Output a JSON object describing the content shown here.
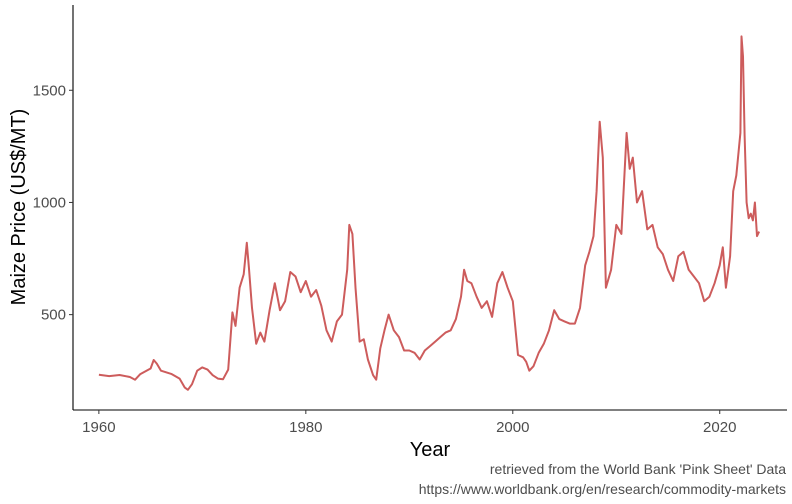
{
  "chart_data": {
    "type": "line",
    "xlabel": "Year",
    "ylabel": "Maize Price (US$/MT)",
    "xlim": [
      1957.5,
      2026.5
    ],
    "ylim": [
      75,
      1880
    ],
    "x_ticks": [
      1960,
      1980,
      2000,
      2020
    ],
    "y_ticks": [
      500,
      1000,
      1500
    ],
    "grid": false,
    "line_color": "#CD5C5C",
    "series": [
      {
        "x": [
          1960.0,
          1961.0,
          1962.0,
          1963.0,
          1963.5,
          1964.0,
          1965.0,
          1965.3,
          1965.6,
          1966.0,
          1967.0,
          1967.8,
          1968.3,
          1968.6,
          1969.0,
          1969.5,
          1970.0,
          1970.5,
          1971.0,
          1971.5,
          1972.0,
          1972.5,
          1972.9,
          1973.2,
          1973.6,
          1974.0,
          1974.3,
          1974.5,
          1974.8,
          1975.2,
          1975.6,
          1976.0,
          1976.5,
          1977.0,
          1977.5,
          1978.0,
          1978.5,
          1979.0,
          1979.5,
          1980.0,
          1980.5,
          1981.0,
          1981.5,
          1982.0,
          1982.5,
          1983.0,
          1983.5,
          1984.0,
          1984.2,
          1984.5,
          1984.8,
          1985.2,
          1985.6,
          1986.0,
          1986.5,
          1986.8,
          1987.2,
          1987.6,
          1988.0,
          1988.5,
          1989.0,
          1989.5,
          1990.0,
          1990.5,
          1991.0,
          1991.5,
          1992.0,
          1992.5,
          1993.0,
          1993.5,
          1994.0,
          1994.5,
          1995.0,
          1995.3,
          1995.6,
          1996.0,
          1996.5,
          1997.0,
          1997.5,
          1998.0,
          1998.5,
          1999.0,
          1999.5,
          2000.0,
          2000.5,
          2001.0,
          2001.3,
          2001.6,
          2002.0,
          2002.5,
          2003.0,
          2003.5,
          2004.0,
          2004.5,
          2005.0,
          2005.5,
          2006.0,
          2006.5,
          2007.0,
          2007.4,
          2007.8,
          2008.1,
          2008.4,
          2008.7,
          2009.0,
          2009.5,
          2010.0,
          2010.5,
          2011.0,
          2011.3,
          2011.6,
          2012.0,
          2012.5,
          2013.0,
          2013.5,
          2014.0,
          2014.5,
          2015.0,
          2015.5,
          2016.0,
          2016.5,
          2017.0,
          2017.5,
          2018.0,
          2018.5,
          2019.0,
          2019.5,
          2020.0,
          2020.3,
          2020.6,
          2021.0,
          2021.3,
          2021.6,
          2022.0,
          2022.1,
          2022.25,
          2022.4,
          2022.6,
          2022.8,
          2023.0,
          2023.2,
          2023.4,
          2023.6,
          2023.8
        ],
        "values": [
          232,
          226,
          231,
          222,
          210,
          235,
          260,
          298,
          282,
          250,
          236,
          215,
          175,
          165,
          190,
          250,
          265,
          255,
          230,
          215,
          212,
          255,
          510,
          450,
          620,
          680,
          820,
          710,
          530,
          370,
          420,
          380,
          520,
          640,
          520,
          560,
          690,
          670,
          600,
          650,
          580,
          610,
          540,
          430,
          380,
          470,
          500,
          700,
          900,
          860,
          620,
          380,
          390,
          300,
          230,
          210,
          350,
          430,
          500,
          430,
          400,
          340,
          340,
          330,
          300,
          340,
          360,
          380,
          400,
          420,
          430,
          480,
          580,
          700,
          650,
          640,
          580,
          530,
          560,
          490,
          640,
          690,
          620,
          560,
          320,
          310,
          290,
          250,
          270,
          330,
          370,
          430,
          520,
          480,
          470,
          460,
          460,
          530,
          720,
          780,
          850,
          1050,
          1360,
          1200,
          620,
          700,
          900,
          860,
          1310,
          1150,
          1200,
          1000,
          1050,
          880,
          900,
          800,
          770,
          700,
          650,
          760,
          780,
          700,
          670,
          640,
          560,
          580,
          640,
          720,
          800,
          620,
          760,
          1050,
          1120,
          1310,
          1740,
          1650,
          1300,
          1000,
          930,
          950,
          920,
          1000,
          850,
          870
        ]
      }
    ]
  },
  "caption": {
    "line1": "retrieved from the World Bank 'Pink Sheet' Data",
    "line2": "https://www.worldbank.org/en/research/commodity-markets"
  }
}
